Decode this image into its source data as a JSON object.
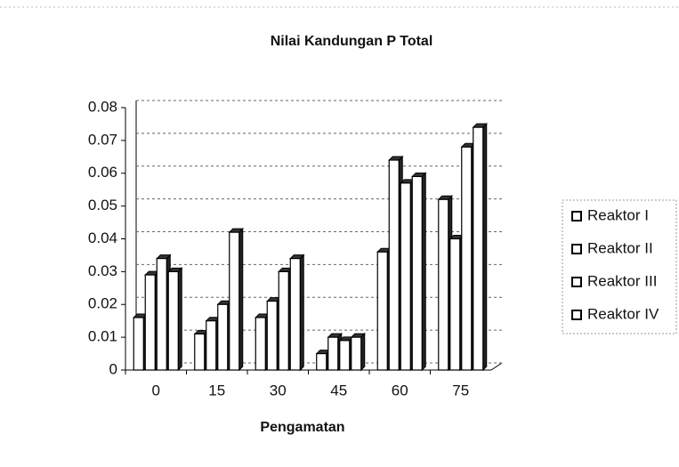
{
  "chart_data": {
    "type": "bar",
    "title": "Nilai Kandungan P Total",
    "x_label": "Pengamatan",
    "categories": [
      "0",
      "15",
      "30",
      "45",
      "60",
      "75"
    ],
    "series": [
      {
        "name": "Reaktor I",
        "color": "#ffffff",
        "values": [
          0.016,
          0.011,
          0.016,
          0.005,
          0.036,
          0.052
        ]
      },
      {
        "name": "Reaktor II",
        "color": "#ffffff",
        "values": [
          0.029,
          0.015,
          0.021,
          0.01,
          0.064,
          0.04
        ]
      },
      {
        "name": "Reaktor III",
        "color": "#ffffff",
        "values": [
          0.034,
          0.02,
          0.03,
          0.009,
          0.057,
          0.068
        ]
      },
      {
        "name": "Reaktor IV",
        "color": "#ffffff",
        "values": [
          0.03,
          0.042,
          0.034,
          0.01,
          0.059,
          0.074
        ]
      }
    ],
    "ylim": [
      0,
      0.08
    ],
    "yticks": [
      0,
      0.01,
      0.02,
      0.03,
      0.04,
      0.05,
      0.06,
      0.07,
      0.08
    ],
    "grid": true,
    "legend": "right"
  }
}
